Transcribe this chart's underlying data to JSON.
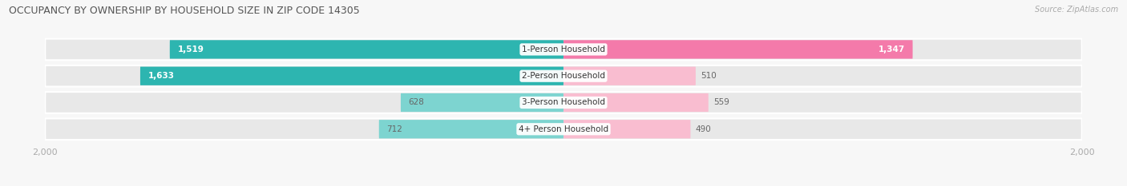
{
  "title": "OCCUPANCY BY OWNERSHIP BY HOUSEHOLD SIZE IN ZIP CODE 14305",
  "source": "Source: ZipAtlas.com",
  "categories": [
    "1-Person Household",
    "2-Person Household",
    "3-Person Household",
    "4+ Person Household"
  ],
  "owner_values": [
    1519,
    1633,
    628,
    712
  ],
  "renter_values": [
    1347,
    510,
    559,
    490
  ],
  "max_val": 2000,
  "owner_color_dark": "#2db5b0",
  "owner_color_light": "#7dd4d0",
  "renter_color_dark": "#f47aaa",
  "renter_color_light": "#f9bdd0",
  "row_bg_color": "#e8e8e8",
  "title_color": "#555555",
  "source_color": "#aaaaaa",
  "axis_label_color": "#aaaaaa",
  "figsize": [
    14.06,
    2.33
  ],
  "dpi": 100
}
